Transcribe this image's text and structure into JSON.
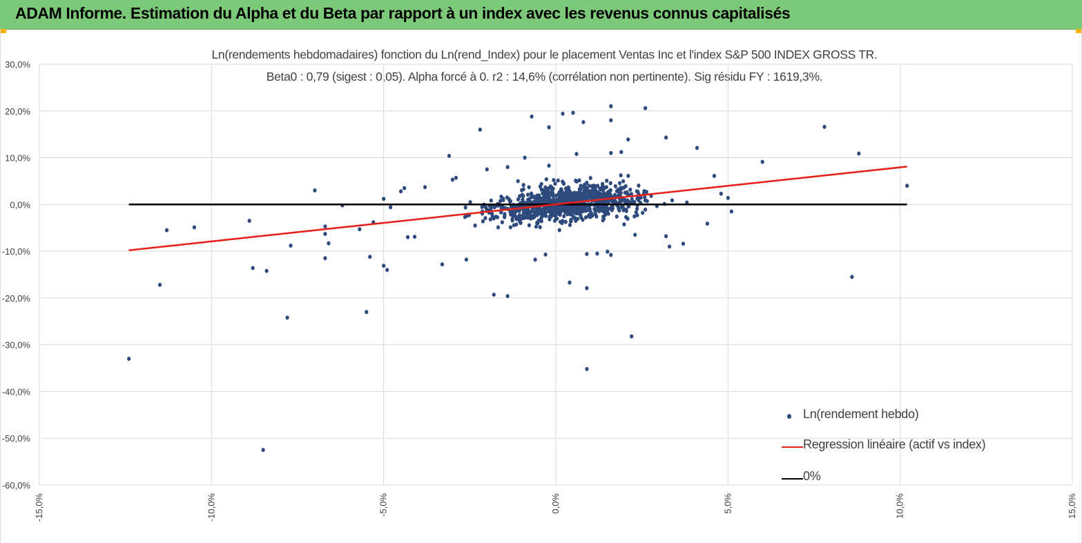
{
  "header": {
    "title": "ADAM Informe. Estimation du Alpha et du Beta par rapport à un index avec les revenus connus capitalisés"
  },
  "colors": {
    "banner": "#7dc97a",
    "corner_accent": "#f5b400",
    "points": "#2e4a7d",
    "regression": "#e8221b",
    "zero_line": "#000000",
    "grid": "#d9d9d9"
  },
  "chart_data": {
    "type": "scatter",
    "title": "Ln(rendements hebdomadaires) fonction du Ln(rend_Index) pour le placement Ventas Inc et l'index S&P 500 INDEX GROSS TR.",
    "subtitle": "Beta0 : 0,79 (sigest : 0,05).  Alpha forcé à 0. r2 : 14,6% (corrélation non pertinente). Sig résidu FY : 1619,3%.",
    "xlim": [
      -15,
      15
    ],
    "ylim": [
      -60,
      30
    ],
    "x_ticks": [
      "-15,0%",
      "-10,0%",
      "-5,0%",
      "0,0%",
      "5,0%",
      "10,0%",
      "15,0%"
    ],
    "y_ticks": [
      "30,0%",
      "20,0%",
      "10,0%",
      "0,0%",
      "-10,0%",
      "-20,0%",
      "-30,0%",
      "-40,0%",
      "-50,0%",
      "-60,0%"
    ],
    "grid": true,
    "legend_position": "bottom-right",
    "series": [
      {
        "name": "Ln(rendement hebdo)",
        "kind": "scatter",
        "color": "#2e4a7d",
        "points": [
          [
            -12.4,
            -33.0
          ],
          [
            -11.5,
            -17.2
          ],
          [
            -11.3,
            -5.5
          ],
          [
            -10.5,
            -4.9
          ],
          [
            -8.9,
            -3.5
          ],
          [
            -8.8,
            -13.6
          ],
          [
            -8.4,
            -14.2
          ],
          [
            -8.5,
            -52.5
          ],
          [
            -7.8,
            -24.2
          ],
          [
            -7.7,
            -8.8
          ],
          [
            -7.0,
            3.0
          ],
          [
            -6.7,
            -4.7
          ],
          [
            -6.7,
            -6.3
          ],
          [
            -6.6,
            -8.3
          ],
          [
            -6.7,
            -11.5
          ],
          [
            -6.2,
            -0.2
          ],
          [
            -5.7,
            -5.3
          ],
          [
            -5.3,
            -3.8
          ],
          [
            -5.4,
            -11.2
          ],
          [
            -5.5,
            -23.0
          ],
          [
            -5.0,
            -13.1
          ],
          [
            -4.9,
            -14.0
          ],
          [
            -5.0,
            1.2
          ],
          [
            -4.8,
            -0.6
          ],
          [
            -4.5,
            2.8
          ],
          [
            -4.4,
            3.5
          ],
          [
            -4.3,
            -7.0
          ],
          [
            -4.1,
            -6.9
          ],
          [
            -3.8,
            3.7
          ],
          [
            -3.3,
            -12.8
          ],
          [
            -3.1,
            10.4
          ],
          [
            -2.9,
            5.7
          ],
          [
            -2.6,
            -11.8
          ],
          [
            -2.2,
            16.0
          ],
          [
            -1.8,
            -19.3
          ],
          [
            -1.4,
            -19.6
          ],
          [
            -1.1,
            5.0
          ],
          [
            -0.9,
            10.0
          ],
          [
            -0.6,
            -11.8
          ],
          [
            -0.3,
            -10.7
          ],
          [
            -0.7,
            18.8
          ],
          [
            -0.2,
            16.5
          ],
          [
            0.2,
            19.4
          ],
          [
            0.5,
            19.6
          ],
          [
            0.8,
            17.6
          ],
          [
            0.4,
            -16.7
          ],
          [
            0.9,
            -17.9
          ],
          [
            0.9,
            -35.2
          ],
          [
            0.9,
            -10.6
          ],
          [
            1.2,
            -10.5
          ],
          [
            1.5,
            -10.1
          ],
          [
            1.6,
            -10.8
          ],
          [
            2.2,
            -28.2
          ],
          [
            1.6,
            21.0
          ],
          [
            1.6,
            18.0
          ],
          [
            2.6,
            20.6
          ],
          [
            2.1,
            13.9
          ],
          [
            1.9,
            11.2
          ],
          [
            3.2,
            14.3
          ],
          [
            4.1,
            12.1
          ],
          [
            6.0,
            9.1
          ],
          [
            7.8,
            16.6
          ],
          [
            8.8,
            10.9
          ],
          [
            8.6,
            -15.5
          ],
          [
            10.2,
            4.0
          ],
          [
            5.0,
            1.4
          ],
          [
            5.1,
            -1.5
          ],
          [
            4.6,
            6.1
          ],
          [
            4.8,
            2.3
          ],
          [
            4.4,
            -4.1
          ],
          [
            3.7,
            -8.4
          ],
          [
            3.3,
            -9.0
          ],
          [
            3.2,
            -6.8
          ],
          [
            2.3,
            -6.5
          ],
          [
            1.6,
            11.0
          ],
          [
            0.6,
            10.8
          ],
          [
            -0.2,
            8.3
          ],
          [
            -1.4,
            8.0
          ],
          [
            -2.0,
            7.5
          ],
          [
            -3.0,
            5.3
          ]
        ]
      },
      {
        "name": "Regression linéaire (actif vs index)",
        "kind": "line",
        "color": "#e8221b",
        "x": [
          -12.4,
          10.2
        ],
        "y": [
          -9.8,
          8.1
        ]
      },
      {
        "name": "0%",
        "kind": "line",
        "color": "#000000",
        "x": [
          -12.4,
          10.2
        ],
        "y": [
          0,
          0
        ]
      }
    ]
  }
}
